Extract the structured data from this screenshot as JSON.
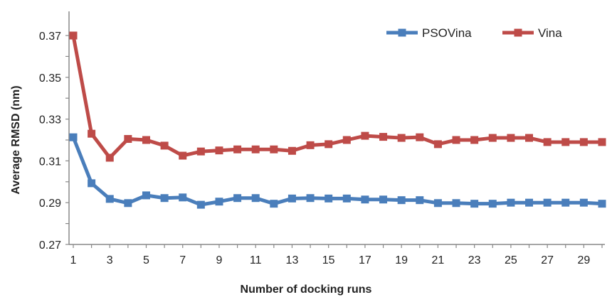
{
  "chart_data": {
    "type": "line",
    "title": "",
    "xlabel": "Number of docking runs",
    "ylabel": "Average RMSD (nm)",
    "ylim": [
      0.27,
      0.37
    ],
    "yticks": [
      "0.27",
      "0.29",
      "0.31",
      "0.33",
      "0.35",
      "0.37"
    ],
    "xticks": [
      "1",
      "3",
      "5",
      "7",
      "9",
      "11",
      "13",
      "15",
      "17",
      "19",
      "21",
      "23",
      "25",
      "27",
      "29"
    ],
    "x": [
      1,
      2,
      3,
      4,
      5,
      6,
      7,
      8,
      9,
      10,
      11,
      12,
      13,
      14,
      15,
      16,
      17,
      18,
      19,
      20,
      21,
      22,
      23,
      24,
      25,
      26,
      27,
      28,
      29,
      30
    ],
    "legend_position": "top-right",
    "series": [
      {
        "name": "PSOVina",
        "color": "#4a7ebb",
        "values": [
          0.3213,
          0.2993,
          0.2918,
          0.2898,
          0.2935,
          0.2922,
          0.2925,
          0.289,
          0.2905,
          0.2922,
          0.2922,
          0.2895,
          0.292,
          0.2922,
          0.292,
          0.292,
          0.2915,
          0.2915,
          0.2912,
          0.2912,
          0.2898,
          0.2898,
          0.2895,
          0.2895,
          0.29,
          0.29,
          0.29,
          0.29,
          0.29,
          0.2895
        ]
      },
      {
        "name": "Vina",
        "color": "#be4b48",
        "values": [
          0.37,
          0.323,
          0.3115,
          0.3205,
          0.32,
          0.3173,
          0.3125,
          0.3145,
          0.315,
          0.3155,
          0.3155,
          0.3155,
          0.3148,
          0.3175,
          0.318,
          0.32,
          0.322,
          0.3215,
          0.321,
          0.3213,
          0.318,
          0.32,
          0.32,
          0.321,
          0.321,
          0.321,
          0.319,
          0.319,
          0.319,
          0.319
        ]
      }
    ]
  }
}
